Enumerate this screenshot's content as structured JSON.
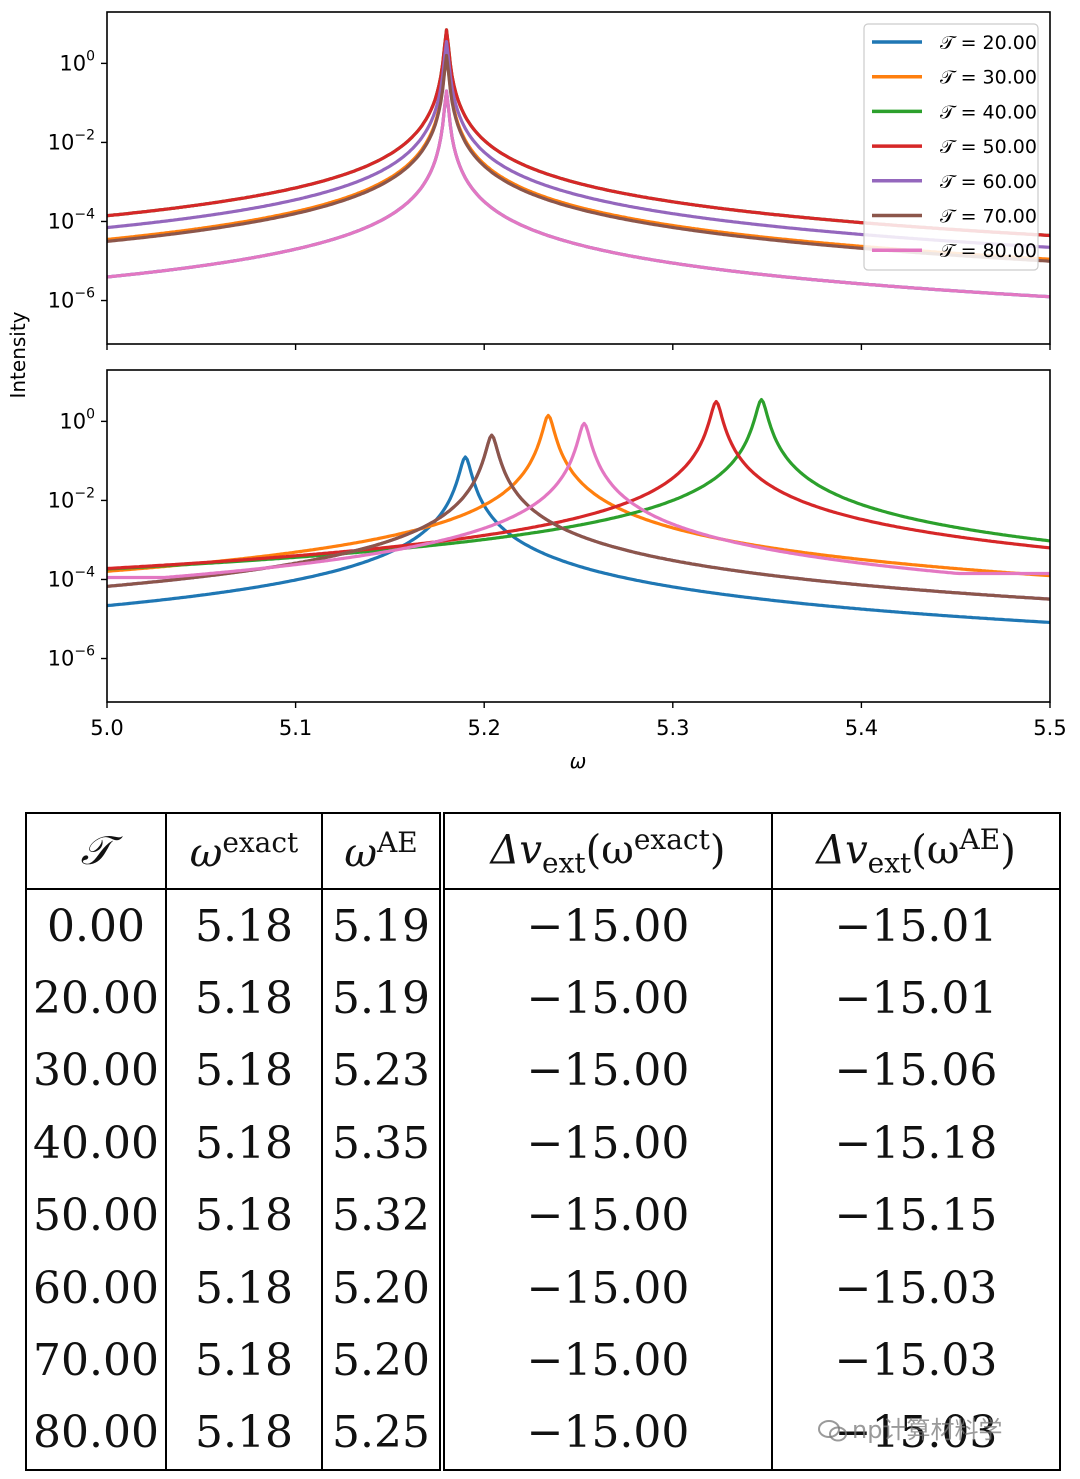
{
  "chart_data": [
    {
      "type": "line",
      "title": "",
      "xlabel": "",
      "ylabel": "Intensity",
      "xlim": [
        5.0,
        5.5
      ],
      "ylim_log10": [
        -7.1,
        1.3
      ],
      "y_scale": "log",
      "ytick_labels": [
        "10^0",
        "10^-2",
        "10^-4",
        "10^-6"
      ],
      "legend": "top-right",
      "legend_labels": [
        "𝒯 = 20.00",
        "𝒯 = 30.00",
        "𝒯 = 40.00",
        "𝒯 = 50.00",
        "𝒯 = 60.00",
        "𝒯 = 70.00",
        "𝒯 = 80.00"
      ],
      "series": [
        {
          "name": "𝒯 = 20.00",
          "color": "#1f77b4",
          "peak_x": 5.18,
          "peak_log10": -0.7,
          "gamma": 0.0009
        },
        {
          "name": "𝒯 = 30.00",
          "color": "#ff7f0e",
          "peak_x": 5.18,
          "peak_log10": 0.25,
          "gamma": 0.0009
        },
        {
          "name": "𝒯 = 40.00",
          "color": "#2ca02c",
          "peak_x": 5.18,
          "peak_log10": 0.85,
          "gamma": 0.0009
        },
        {
          "name": "𝒯 = 50.00",
          "color": "#d62728",
          "peak_x": 5.18,
          "peak_log10": 0.85,
          "gamma": 0.0009
        },
        {
          "name": "𝒯 = 60.00",
          "color": "#9467bd",
          "peak_x": 5.18,
          "peak_log10": 0.55,
          "gamma": 0.0009
        },
        {
          "name": "𝒯 = 70.00",
          "color": "#8c564b",
          "peak_x": 5.18,
          "peak_log10": 0.2,
          "gamma": 0.0009
        },
        {
          "name": "𝒯 = 80.00",
          "color": "#e377c2",
          "peak_x": 5.18,
          "peak_log10": -0.7,
          "gamma": 0.0009
        }
      ]
    },
    {
      "type": "line",
      "title": "",
      "xlabel": "ω",
      "ylabel": "Intensity",
      "xlim": [
        5.0,
        5.5
      ],
      "ylim_log10": [
        -7.1,
        1.3
      ],
      "y_scale": "log",
      "xtick_labels": [
        "5.0",
        "5.1",
        "5.2",
        "5.3",
        "5.4",
        "5.5"
      ],
      "ytick_labels": [
        "10^0",
        "10^-2",
        "10^-4",
        "10^-6"
      ],
      "series": [
        {
          "name": "𝒯 = 20.00",
          "color": "#1f77b4",
          "peak_x": 5.19,
          "peak_log10": -0.9,
          "tail_left": -5.0,
          "tail_right": -5.4
        },
        {
          "name": "𝒯 = 30.00",
          "color": "#ff7f0e",
          "peak_x": 5.234,
          "peak_log10": 0.15,
          "tail_left": -5.5,
          "tail_right": -5.6
        },
        {
          "name": "𝒯 = 40.00",
          "color": "#2ca02c",
          "peak_x": 5.347,
          "peak_log10": 0.55,
          "tail_left": -4.1,
          "tail_right": -3.5
        },
        {
          "name": "𝒯 = 50.00",
          "color": "#d62728",
          "peak_x": 5.323,
          "peak_log10": 0.5,
          "tail_left": -4.2,
          "tail_right": -3.8
        },
        {
          "name": "𝒯 = 60.00",
          "color": "#9467bd",
          "peak_x": 5.204,
          "peak_log10": -0.35,
          "tail_left": -4.9,
          "tail_right": -5.2
        },
        {
          "name": "𝒯 = 70.00",
          "color": "#8c564b",
          "peak_x": 5.204,
          "peak_log10": -0.35,
          "tail_left": -4.4,
          "tail_right": -4.75
        },
        {
          "name": "𝒯 = 80.00",
          "color": "#e377c2",
          "peak_x": 5.253,
          "peak_log10": -0.05,
          "tail_left": -3.95,
          "tail_right": -3.85
        }
      ]
    }
  ],
  "table": {
    "headers": [
      "𝒯",
      "ω",
      "exact",
      "ω",
      "AE",
      "Δv",
      "ext",
      "(ω",
      "exact",
      ")",
      "Δv",
      "ext",
      "(ω",
      "AE",
      ")"
    ],
    "rows": [
      [
        "0.00",
        "5.18",
        "5.19",
        "−15.00",
        "−15.01"
      ],
      [
        "20.00",
        "5.18",
        "5.19",
        "−15.00",
        "−15.01"
      ],
      [
        "30.00",
        "5.18",
        "5.23",
        "−15.00",
        "−15.06"
      ],
      [
        "40.00",
        "5.18",
        "5.35",
        "−15.00",
        "−15.18"
      ],
      [
        "50.00",
        "5.18",
        "5.32",
        "−15.00",
        "−15.15"
      ],
      [
        "60.00",
        "5.18",
        "5.20",
        "−15.00",
        "−15.03"
      ],
      [
        "70.00",
        "5.18",
        "5.20",
        "−15.00",
        "−15.03"
      ],
      [
        "80.00",
        "5.18",
        "5.25",
        "−15.00",
        "−15.03"
      ]
    ]
  },
  "watermark": "np计算材料学"
}
